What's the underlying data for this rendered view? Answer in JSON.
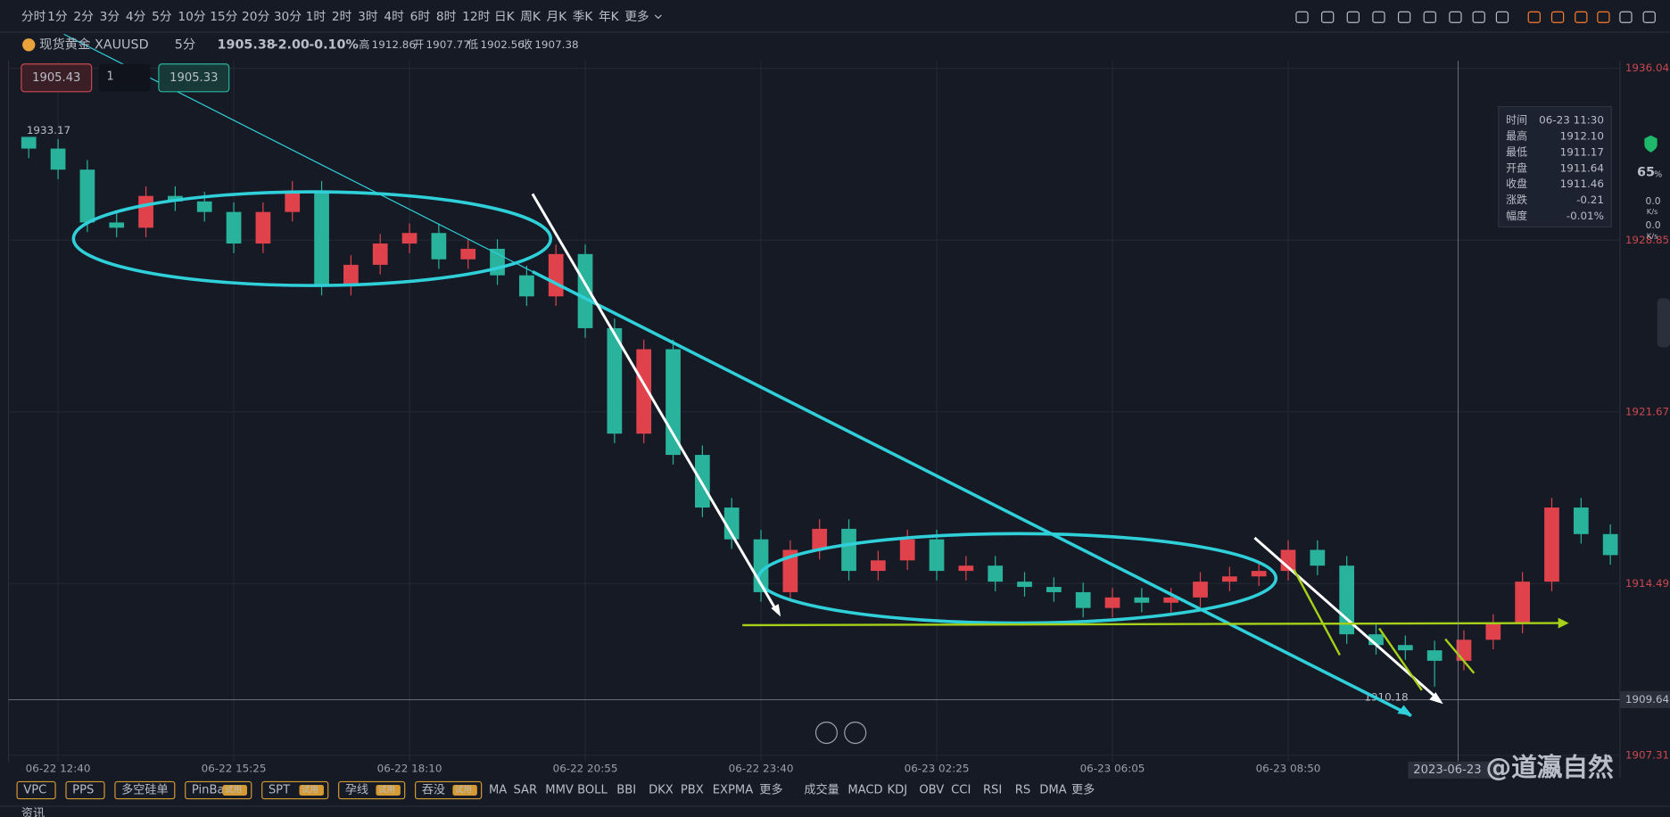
{
  "toolbar": {
    "periods": [
      "分时",
      "1分",
      "2分",
      "3分",
      "4分",
      "5分",
      "10分",
      "15分",
      "20分",
      "30分",
      "1时",
      "2时",
      "3时",
      "4时",
      "6时",
      "8时",
      "12时",
      "日K",
      "周K",
      "月K",
      "季K",
      "年K",
      "更多"
    ]
  },
  "symbol": {
    "name": "现货黄金 XAUUSD",
    "period": "5分",
    "price": "1905.38",
    "change": "-2.00",
    "change_pct": "-0.10%",
    "stats": [
      {
        "label": "高",
        "value": "1912.86"
      },
      {
        "label": "开",
        "value": "1907.77"
      },
      {
        "label": "低",
        "value": "1902.56"
      },
      {
        "label": "收",
        "value": "1907.38"
      }
    ]
  },
  "order": {
    "sell": "1905.43",
    "qty": "1",
    "buy": "1905.33"
  },
  "chart_data": {
    "type": "candlestick",
    "up_color": "#e0424c",
    "down_color": "#29b39d",
    "categories": [
      null,
      "06-22 12:40",
      null,
      null,
      null,
      null,
      null,
      "06-22 15:25",
      null,
      null,
      null,
      null,
      null,
      "06-22 18:10",
      null,
      null,
      null,
      null,
      null,
      "06-22 20:55",
      null,
      null,
      null,
      null,
      null,
      "06-22 23:40",
      null,
      null,
      null,
      null,
      null,
      "06-23 02:25",
      null,
      null,
      null,
      null,
      null,
      "06-23 06:05",
      null,
      null,
      null,
      null,
      null,
      "06-23 08:50",
      null,
      null,
      null,
      null,
      null,
      null,
      null,
      null,
      null,
      null,
      null
    ],
    "open": [
      1933.17,
      1932.68,
      1931.8,
      1929.59,
      1929.37,
      1930.7,
      1930.47,
      1930.03,
      1928.71,
      1930.03,
      1930.92,
      1926.94,
      1927.82,
      1928.71,
      1929.15,
      1928.05,
      1928.49,
      1927.38,
      1926.5,
      1928.27,
      1925.17,
      1920.76,
      1924.29,
      1919.87,
      1917.67,
      1916.34,
      1914.13,
      1915.9,
      1916.78,
      1915.02,
      1915.46,
      1916.34,
      1915.02,
      1915.24,
      1914.57,
      1914.35,
      1914.13,
      1913.47,
      1913.91,
      1913.69,
      1913.91,
      1914.57,
      1914.79,
      1915.02,
      1915.9,
      1915.24,
      1912.37,
      1911.92,
      1911.7,
      1911.26,
      1912.14,
      1912.81,
      1914.57,
      1917.67,
      1916.56
    ],
    "high": [
      1933.17,
      1933.08,
      1932.2,
      1929.99,
      1931.1,
      1931.1,
      1930.87,
      1930.43,
      1930.43,
      1931.32,
      1931.32,
      1928.22,
      1929.11,
      1929.55,
      1929.55,
      1928.89,
      1928.89,
      1927.78,
      1928.67,
      1928.67,
      1925.57,
      1924.69,
      1924.69,
      1920.27,
      1918.07,
      1916.74,
      1916.3,
      1917.18,
      1917.18,
      1915.86,
      1916.74,
      1916.74,
      1915.64,
      1915.64,
      1914.97,
      1914.75,
      1914.53,
      1914.31,
      1914.31,
      1914.31,
      1914.97,
      1915.19,
      1915.42,
      1916.3,
      1916.3,
      1915.64,
      1912.77,
      1912.32,
      1912.1,
      1912.54,
      1913.21,
      1914.97,
      1918.07,
      1918.07,
      1916.96
    ],
    "low": [
      1932.28,
      1931.4,
      1929.19,
      1928.97,
      1928.97,
      1930.07,
      1929.63,
      1928.31,
      1928.31,
      1929.63,
      1926.54,
      1926.54,
      1927.42,
      1928.31,
      1927.65,
      1927.65,
      1926.98,
      1926.1,
      1926.1,
      1924.77,
      1920.36,
      1920.36,
      1919.47,
      1917.27,
      1915.94,
      1913.73,
      1913.73,
      1915.5,
      1914.62,
      1914.62,
      1915.06,
      1914.62,
      1914.62,
      1914.17,
      1913.95,
      1913.73,
      1913.07,
      1913.07,
      1913.29,
      1913.29,
      1913.51,
      1914.17,
      1914.39,
      1914.62,
      1914.84,
      1911.97,
      1911.52,
      1911.3,
      1910.18,
      1910.86,
      1911.74,
      1912.41,
      1914.17,
      1916.16,
      1915.28
    ],
    "close": [
      1932.68,
      1931.8,
      1929.59,
      1929.37,
      1930.7,
      1930.47,
      1930.03,
      1928.71,
      1930.03,
      1930.92,
      1926.94,
      1927.82,
      1928.71,
      1929.15,
      1928.05,
      1928.49,
      1927.38,
      1926.5,
      1928.27,
      1925.17,
      1920.76,
      1924.29,
      1919.87,
      1917.67,
      1916.34,
      1914.13,
      1915.9,
      1916.78,
      1915.02,
      1915.46,
      1916.34,
      1915.02,
      1915.24,
      1914.57,
      1914.35,
      1914.13,
      1913.47,
      1913.91,
      1913.69,
      1913.91,
      1914.57,
      1914.79,
      1915.02,
      1915.9,
      1915.24,
      1912.37,
      1911.92,
      1911.7,
      1911.26,
      1912.14,
      1912.81,
      1914.57,
      1917.67,
      1916.56,
      1915.68
    ],
    "ylim": [
      1907.05,
      1936.35
    ],
    "yticks": [
      1936.04,
      1928.85,
      1921.67,
      1914.49,
      1907.31
    ],
    "last_price": 1909.64,
    "grid": true
  },
  "tooltip": {
    "rows": [
      {
        "label": "时间",
        "value": "06-23 11:30"
      },
      {
        "label": "最高",
        "value": "1912.10"
      },
      {
        "label": "最低",
        "value": "1911.17"
      },
      {
        "label": "开盘",
        "value": "1911.64"
      },
      {
        "label": "收盘",
        "value": "1911.46"
      },
      {
        "label": "涨跌",
        "value": "-0.21"
      },
      {
        "label": "幅度",
        "value": "-0.01%"
      }
    ]
  },
  "side": {
    "percent": "65",
    "unit": "%",
    "speeds": [
      {
        "value": "0.0",
        "unit": "K/s"
      },
      {
        "value": "0.0",
        "unit": "K/s"
      }
    ]
  },
  "indicators": {
    "patterns": [
      {
        "name": "VPC"
      },
      {
        "name": "PPS"
      },
      {
        "name": "多空硅单"
      },
      {
        "name": "PinBar",
        "badge": "试用"
      },
      {
        "name": "SPT",
        "badge": "试用"
      },
      {
        "name": "孕线",
        "badge": "试用"
      },
      {
        "name": "吞没",
        "badge": "试用"
      }
    ],
    "main": [
      "MA",
      "SAR",
      "MMV",
      "BOLL",
      "BBI",
      "DKX",
      "PBX",
      "EXPMA",
      "更多"
    ],
    "sub": [
      "成交量",
      "MACD",
      "KDJ",
      "OBV",
      "CCI",
      "RSI",
      "RS",
      "DMA",
      "更多"
    ]
  },
  "cursor_date": "2023-06-23",
  "watermark": "@道瀛自然",
  "news": "资讯"
}
